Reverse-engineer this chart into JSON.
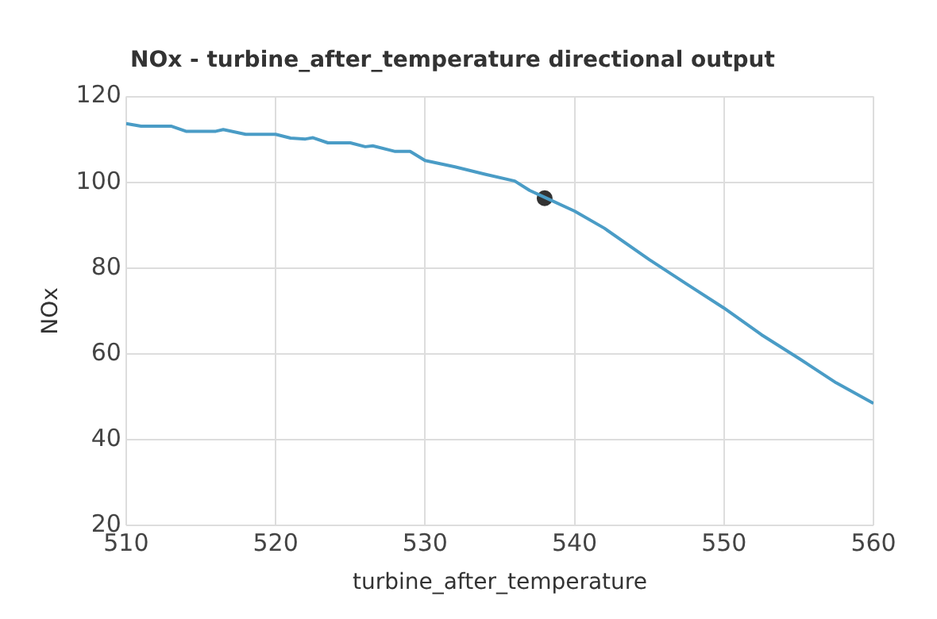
{
  "chart_data": {
    "type": "line",
    "title": "NOx - turbine_after_temperature directional output",
    "xlabel": "turbine_after_temperature",
    "ylabel": "NOx",
    "series": [
      {
        "color": "#4a9cc6",
        "marker": "none",
        "x": [
          510,
          511,
          513,
          514,
          516,
          516.5,
          518,
          520,
          521,
          522,
          522.5,
          523.5,
          525,
          526,
          526.5,
          528,
          529,
          530,
          532,
          534,
          536,
          537,
          538,
          540,
          542,
          545,
          547.5,
          550,
          552.5,
          555,
          557.5,
          560
        ],
        "values": [
          113.7,
          113.1,
          113.1,
          111.9,
          111.9,
          112.3,
          111.2,
          111.2,
          110.3,
          110.1,
          110.4,
          109.2,
          109.2,
          108.3,
          108.5,
          107.2,
          107.2,
          105.1,
          103.6,
          101.9,
          100.3,
          98.1,
          96.5,
          93.3,
          89.3,
          82,
          76.3,
          70.7,
          64.5,
          59,
          53.3,
          48.5
        ]
      },
      {
        "type": "scatter",
        "marker": "circle",
        "color": "#333333",
        "x": [
          538
        ],
        "values": [
          96.3
        ]
      }
    ],
    "xlim": [
      510,
      560
    ],
    "xticks": [
      510,
      520,
      530,
      540,
      550,
      560
    ],
    "ylim": [
      20,
      120
    ],
    "yticks": [
      20,
      40,
      60,
      80,
      100,
      120
    ],
    "grid": true,
    "legend": false
  }
}
